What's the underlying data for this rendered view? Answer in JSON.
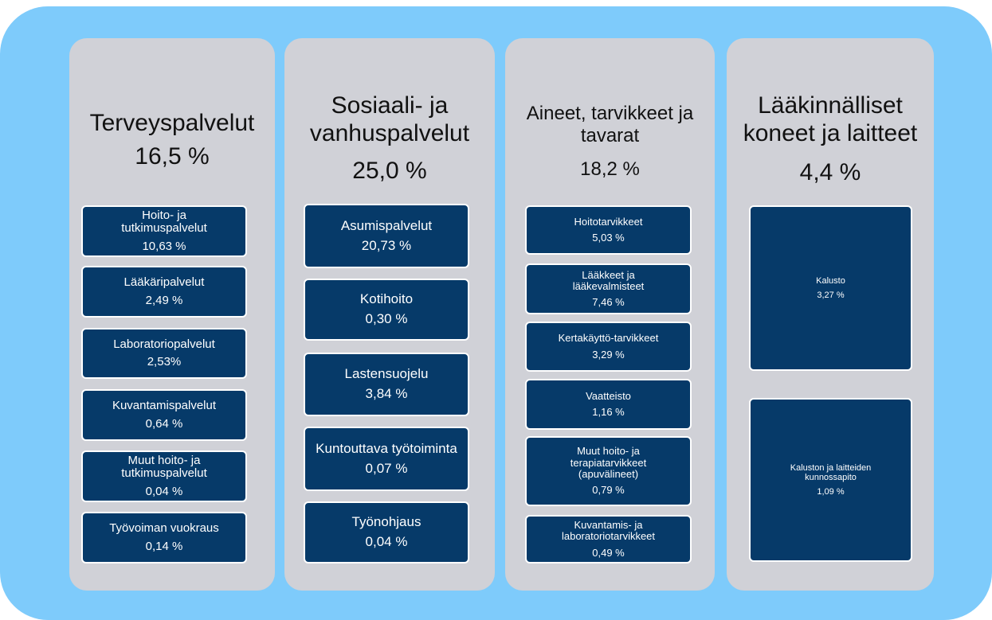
{
  "columns": [
    {
      "title": "Terveyspalvelut",
      "percent": "16,5 %",
      "items": [
        {
          "label": "Hoito- ja tutkimuspalvelut",
          "value": "10,63 %"
        },
        {
          "label": "Lääkäripalvelut",
          "value": "2,49 %"
        },
        {
          "label": "Laboratoriopalvelut",
          "value": "2,53%"
        },
        {
          "label": "Kuvantamispalvelut",
          "value": "0,64 %"
        },
        {
          "label": "Muut hoito- ja tutkimuspalvelut",
          "value": "0,04 %"
        },
        {
          "label": "Työvoiman vuokraus",
          "value": "0,14 %"
        }
      ]
    },
    {
      "title": "Sosiaali- ja vanhuspalvelut",
      "percent": "25,0 %",
      "items": [
        {
          "label": "Asumispalvelut",
          "value": "20,73 %"
        },
        {
          "label": "Kotihoito",
          "value": "0,30 %"
        },
        {
          "label": "Lastensuojelu",
          "value": "3,84 %"
        },
        {
          "label": "Kuntouttava työtoiminta",
          "value": "0,07 %"
        },
        {
          "label": "Työnohjaus",
          "value": "0,04 %"
        }
      ]
    },
    {
      "title": "Aineet, tarvikkeet ja tavarat",
      "percent": "18,2 %",
      "items": [
        {
          "label": "Hoitotarvikkeet",
          "value": "5,03 %"
        },
        {
          "label": "Lääkkeet ja lääkevalmisteet",
          "value": "7,46 %"
        },
        {
          "label": "Kertakäyttö-tarvikkeet",
          "value": "3,29 %"
        },
        {
          "label": "Vaatteisto",
          "value": "1,16 %"
        },
        {
          "label": "Muut hoito- ja terapiatarvikkeet (apuvälineet)",
          "value": "0,79 %"
        },
        {
          "label": "Kuvantamis- ja laboratoriotarvikkeet",
          "value": "0,49 %"
        }
      ]
    },
    {
      "title": "Lääkinnälliset koneet ja laitteet",
      "percent": "4,4 %",
      "items": [
        {
          "label": "Kalusto",
          "value": "3,27 %"
        },
        {
          "label": "Kaluston ja laitteiden kunnossapito",
          "value": "1,09 %"
        }
      ]
    }
  ]
}
